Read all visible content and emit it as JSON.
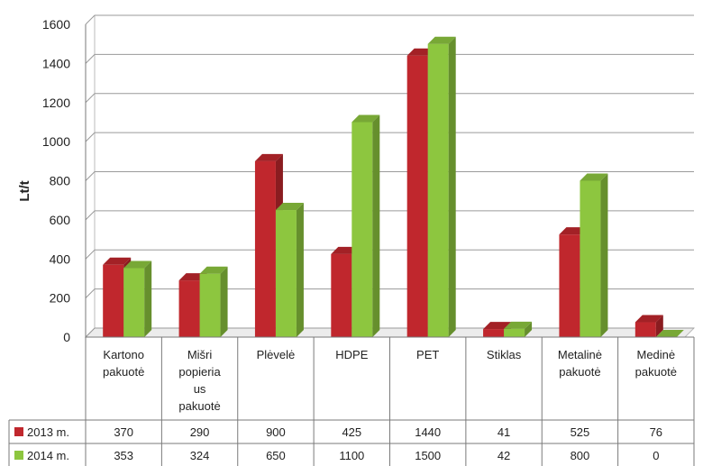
{
  "chart_data": {
    "type": "bar",
    "ylabel": "Lt/t",
    "ylim": [
      0,
      1600
    ],
    "yticks": [
      "0",
      "200",
      "400",
      "600",
      "800",
      "1000",
      "1200",
      "1400",
      "1600"
    ],
    "categories": [
      [
        "Kartono",
        "pakuotė"
      ],
      [
        "Mišri",
        "popieria",
        "us",
        "pakuotė"
      ],
      [
        "Plėvelė"
      ],
      [
        "HDPE"
      ],
      [
        "PET"
      ],
      [
        "Stiklas"
      ],
      [
        "Metalinė",
        "pakuotė"
      ],
      [
        "Medinė",
        "pakuotė"
      ]
    ],
    "series": [
      {
        "name": "2013 m.",
        "color": "#c0272d",
        "values": [
          370,
          290,
          900,
          425,
          1440,
          41,
          525,
          76
        ],
        "labels": [
          "370",
          "290",
          "900",
          "425",
          "1440",
          "41",
          "525",
          "76"
        ]
      },
      {
        "name": "2014 m.",
        "color": "#8dc63f",
        "values": [
          353,
          324,
          650,
          1100,
          1500,
          42,
          800,
          0
        ],
        "labels": [
          "353",
          "324",
          "650",
          "1100",
          "1500",
          "42",
          "800",
          "0"
        ]
      }
    ],
    "grid": true,
    "legend": "data-table"
  }
}
